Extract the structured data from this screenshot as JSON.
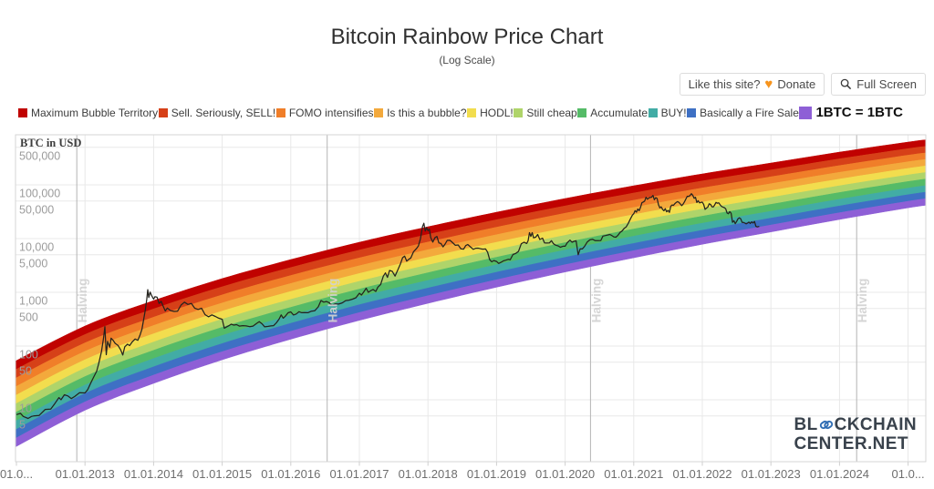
{
  "page": {
    "title": "Bitcoin Rainbow Price Chart",
    "subtitle": "(Log Scale)"
  },
  "toolbar": {
    "like_label": "Like this site?",
    "heart_icon": "♥",
    "donate_label": "Donate",
    "fullscreen_label": "Full Screen"
  },
  "watermark": {
    "line1_pre": "BL",
    "line1_post": "CKCHAIN",
    "line2": "CENTER.NET",
    "chain_color": "#2F6DB3"
  },
  "chart_data": {
    "type": "area",
    "title": "Bitcoin Rainbow Price Chart",
    "subtitle": "(Log Scale)",
    "legend_position": "top",
    "grid": true,
    "y_axis": {
      "title": "BTC in USD",
      "scale": "log",
      "ticks": [
        500000,
        100000,
        50000,
        10000,
        5000,
        1000,
        500,
        100,
        50,
        10,
        5
      ]
    },
    "x_axis": {
      "year_start": 2012,
      "tick_years": [
        2012,
        2013,
        2014,
        2015,
        2016,
        2017,
        2018,
        2019,
        2020,
        2021,
        2022,
        2023,
        2024,
        2025
      ],
      "labels": [
        "01.0...",
        "01.01.2013",
        "01.01.2014",
        "01.01.2015",
        "01.01.2016",
        "01.01.2017",
        "01.01.2018",
        "01.01.2019",
        "01.01.2020",
        "01.01.2021",
        "01.01.2022",
        "01.01.2023",
        "01.01.2024",
        "01.0..."
      ],
      "grid_years": [
        2013,
        2014,
        2015,
        2016,
        2017,
        2018,
        2019,
        2020,
        2021,
        2022,
        2023,
        2024,
        2025
      ]
    },
    "halvings": {
      "label": "Halving",
      "years": [
        2012.88,
        2016.53,
        2020.37,
        2024.25
      ]
    },
    "bands": [
      {
        "label": "Maximum Bubble Territory",
        "color": "#C00200"
      },
      {
        "label": "Sell. Seriously, SELL!",
        "color": "#D64018"
      },
      {
        "label": "FOMO intensifies",
        "color": "#F07E29"
      },
      {
        "label": "Is this a bubble?",
        "color": "#F3A93C"
      },
      {
        "label": "HODL!",
        "color": "#F2DD4E"
      },
      {
        "label": "Still cheap",
        "color": "#AFD46A"
      },
      {
        "label": "Accumulate",
        "color": "#55BB67"
      },
      {
        "label": "BUY!",
        "color": "#42ACA5"
      },
      {
        "label": "Basically a Fire Sale",
        "color": "#3E70C4"
      },
      {
        "label": "1BTC = 1BTC",
        "color": "#8E5FD6"
      }
    ],
    "band_log_width": {
      "start": 0.16,
      "end": 0.1215
    },
    "rainbow_top": [
      [
        2011.9,
        46
      ],
      [
        2013,
        236
      ],
      [
        2014,
        700
      ],
      [
        2015,
        1800
      ],
      [
        2016,
        4070
      ],
      [
        2017,
        8550
      ],
      [
        2018,
        16600
      ],
      [
        2019,
        31000
      ],
      [
        2020,
        55700
      ],
      [
        2021,
        96000
      ],
      [
        2022,
        160000
      ],
      [
        2023,
        255000
      ],
      [
        2024,
        407000
      ],
      [
        2025,
        627000
      ],
      [
        2025.35,
        710000
      ]
    ],
    "price_series": [
      [
        2012.0,
        5.3
      ],
      [
        2012.06,
        5.6
      ],
      [
        2012.1,
        4.9
      ],
      [
        2012.17,
        4.5
      ],
      [
        2012.22,
        4.9
      ],
      [
        2012.25,
        5.0
      ],
      [
        2012.33,
        5.1
      ],
      [
        2012.42,
        6.6
      ],
      [
        2012.5,
        6.7
      ],
      [
        2012.56,
        8.5
      ],
      [
        2012.62,
        11.0
      ],
      [
        2012.65,
        10.0
      ],
      [
        2012.7,
        12.4
      ],
      [
        2012.75,
        11.8
      ],
      [
        2012.8,
        10.5
      ],
      [
        2012.85,
        11.5
      ],
      [
        2012.92,
        13.5
      ],
      [
        2013.0,
        13.4
      ],
      [
        2013.04,
        15.5
      ],
      [
        2013.08,
        20
      ],
      [
        2013.13,
        27
      ],
      [
        2013.17,
        34
      ],
      [
        2013.2,
        47
      ],
      [
        2013.24,
        78
      ],
      [
        2013.27,
        140
      ],
      [
        2013.29,
        230
      ],
      [
        2013.31,
        69
      ],
      [
        2013.33,
        122
      ],
      [
        2013.36,
        95
      ],
      [
        2013.38,
        140
      ],
      [
        2013.41,
        128
      ],
      [
        2013.44,
        112
      ],
      [
        2013.48,
        103
      ],
      [
        2013.52,
        85
      ],
      [
        2013.55,
        68
      ],
      [
        2013.58,
        97
      ],
      [
        2013.62,
        108
      ],
      [
        2013.65,
        102
      ],
      [
        2013.69,
        120
      ],
      [
        2013.73,
        135
      ],
      [
        2013.77,
        128
      ],
      [
        2013.8,
        158
      ],
      [
        2013.83,
        205
      ],
      [
        2013.86,
        340
      ],
      [
        2013.88,
        480
      ],
      [
        2013.9,
        740
      ],
      [
        2013.915,
        1120
      ],
      [
        2013.93,
        800
      ],
      [
        2013.95,
        1010
      ],
      [
        2013.97,
        880
      ],
      [
        2014.0,
        745
      ],
      [
        2014.02,
        830
      ],
      [
        2014.05,
        810
      ],
      [
        2014.08,
        620
      ],
      [
        2014.11,
        680
      ],
      [
        2014.14,
        550
      ],
      [
        2014.17,
        450
      ],
      [
        2014.2,
        510
      ],
      [
        2014.25,
        455
      ],
      [
        2014.3,
        440
      ],
      [
        2014.35,
        445
      ],
      [
        2014.4,
        580
      ],
      [
        2014.45,
        655
      ],
      [
        2014.5,
        595
      ],
      [
        2014.55,
        620
      ],
      [
        2014.6,
        505
      ],
      [
        2014.65,
        480
      ],
      [
        2014.7,
        505
      ],
      [
        2014.75,
        385
      ],
      [
        2014.8,
        350
      ],
      [
        2014.85,
        380
      ],
      [
        2014.9,
        355
      ],
      [
        2014.95,
        330
      ],
      [
        2015.0,
        315
      ],
      [
        2015.03,
        215
      ],
      [
        2015.06,
        225
      ],
      [
        2015.1,
        240
      ],
      [
        2015.13,
        255
      ],
      [
        2015.17,
        245
      ],
      [
        2015.21,
        250
      ],
      [
        2015.25,
        235
      ],
      [
        2015.3,
        240
      ],
      [
        2015.35,
        237
      ],
      [
        2015.4,
        230
      ],
      [
        2015.45,
        235
      ],
      [
        2015.5,
        262
      ],
      [
        2015.54,
        285
      ],
      [
        2015.58,
        260
      ],
      [
        2015.62,
        228
      ],
      [
        2015.67,
        232
      ],
      [
        2015.71,
        237
      ],
      [
        2015.75,
        240
      ],
      [
        2015.79,
        270
      ],
      [
        2015.83,
        318
      ],
      [
        2015.86,
        380
      ],
      [
        2015.89,
        330
      ],
      [
        2015.92,
        358
      ],
      [
        2015.96,
        415
      ],
      [
        2016.0,
        432
      ],
      [
        2016.04,
        378
      ],
      [
        2016.08,
        395
      ],
      [
        2016.12,
        435
      ],
      [
        2016.16,
        418
      ],
      [
        2016.2,
        420
      ],
      [
        2016.25,
        417
      ],
      [
        2016.3,
        445
      ],
      [
        2016.35,
        455
      ],
      [
        2016.4,
        535
      ],
      [
        2016.44,
        700
      ],
      [
        2016.48,
        655
      ],
      [
        2016.52,
        675
      ],
      [
        2016.56,
        640
      ],
      [
        2016.6,
        575
      ],
      [
        2016.65,
        610
      ],
      [
        2016.7,
        605
      ],
      [
        2016.75,
        635
      ],
      [
        2016.8,
        700
      ],
      [
        2016.85,
        715
      ],
      [
        2016.9,
        745
      ],
      [
        2016.95,
        790
      ],
      [
        2017.0,
        963
      ],
      [
        2017.03,
        890
      ],
      [
        2017.06,
        1000
      ],
      [
        2017.1,
        1190
      ],
      [
        2017.13,
        1000
      ],
      [
        2017.17,
        1080
      ],
      [
        2017.2,
        1130
      ],
      [
        2017.24,
        1040
      ],
      [
        2017.27,
        1250
      ],
      [
        2017.31,
        1400
      ],
      [
        2017.35,
        2000
      ],
      [
        2017.38,
        2300
      ],
      [
        2017.41,
        1900
      ],
      [
        2017.44,
        2550
      ],
      [
        2017.48,
        2450
      ],
      [
        2017.52,
        2000
      ],
      [
        2017.56,
        2600
      ],
      [
        2017.6,
        3400
      ],
      [
        2017.63,
        4400
      ],
      [
        2017.66,
        4700
      ],
      [
        2017.69,
        3800
      ],
      [
        2017.72,
        4100
      ],
      [
        2017.75,
        4350
      ],
      [
        2017.79,
        5700
      ],
      [
        2017.83,
        6450
      ],
      [
        2017.86,
        7300
      ],
      [
        2017.89,
        9800
      ],
      [
        2017.92,
        16600
      ],
      [
        2017.94,
        19300
      ],
      [
        2017.96,
        13800
      ],
      [
        2017.98,
        16000
      ],
      [
        2018.0,
        14100
      ],
      [
        2018.02,
        15000
      ],
      [
        2018.04,
        10500
      ],
      [
        2018.07,
        8600
      ],
      [
        2018.1,
        10300
      ],
      [
        2018.13,
        11000
      ],
      [
        2018.16,
        8300
      ],
      [
        2018.19,
        8100
      ],
      [
        2018.22,
        7000
      ],
      [
        2018.25,
        7900
      ],
      [
        2018.28,
        9250
      ],
      [
        2018.32,
        9300
      ],
      [
        2018.36,
        8400
      ],
      [
        2018.4,
        7500
      ],
      [
        2018.44,
        7600
      ],
      [
        2018.48,
        6450
      ],
      [
        2018.52,
        6350
      ],
      [
        2018.55,
        7400
      ],
      [
        2018.58,
        7750
      ],
      [
        2018.62,
        7000
      ],
      [
        2018.66,
        6300
      ],
      [
        2018.7,
        6600
      ],
      [
        2018.73,
        6650
      ],
      [
        2018.77,
        6450
      ],
      [
        2018.8,
        6350
      ],
      [
        2018.84,
        6400
      ],
      [
        2018.87,
        5600
      ],
      [
        2018.9,
        4050
      ],
      [
        2018.93,
        3700
      ],
      [
        2018.96,
        3900
      ],
      [
        2019.0,
        3750
      ],
      [
        2019.03,
        3450
      ],
      [
        2019.07,
        3650
      ],
      [
        2019.1,
        3850
      ],
      [
        2019.13,
        3950
      ],
      [
        2019.17,
        4100
      ],
      [
        2019.2,
        4050
      ],
      [
        2019.24,
        5050
      ],
      [
        2019.28,
        5300
      ],
      [
        2019.32,
        5800
      ],
      [
        2019.36,
        8000
      ],
      [
        2019.4,
        8550
      ],
      [
        2019.44,
        8100
      ],
      [
        2019.46,
        9100
      ],
      [
        2019.48,
        12900
      ],
      [
        2019.5,
        11000
      ],
      [
        2019.52,
        12900
      ],
      [
        2019.54,
        10300
      ],
      [
        2019.57,
        10600
      ],
      [
        2019.6,
        11900
      ],
      [
        2019.63,
        9600
      ],
      [
        2019.67,
        10200
      ],
      [
        2019.7,
        8300
      ],
      [
        2019.73,
        8250
      ],
      [
        2019.77,
        8300
      ],
      [
        2019.8,
        9150
      ],
      [
        2019.83,
        8000
      ],
      [
        2019.86,
        7550
      ],
      [
        2019.9,
        7300
      ],
      [
        2019.93,
        6900
      ],
      [
        2019.97,
        7200
      ],
      [
        2020.0,
        7200
      ],
      [
        2020.03,
        8350
      ],
      [
        2020.07,
        9350
      ],
      [
        2020.1,
        8550
      ],
      [
        2020.13,
        8900
      ],
      [
        2020.16,
        9100
      ],
      [
        2020.19,
        5000
      ],
      [
        2020.22,
        6450
      ],
      [
        2020.25,
        6400
      ],
      [
        2020.28,
        7100
      ],
      [
        2020.32,
        8600
      ],
      [
        2020.36,
        9450
      ],
      [
        2020.4,
        9700
      ],
      [
        2020.44,
        9150
      ],
      [
        2020.48,
        9150
      ],
      [
        2020.52,
        9200
      ],
      [
        2020.55,
        11100
      ],
      [
        2020.58,
        11350
      ],
      [
        2020.62,
        11650
      ],
      [
        2020.65,
        11900
      ],
      [
        2020.68,
        11400
      ],
      [
        2020.71,
        10780
      ],
      [
        2020.74,
        10620
      ],
      [
        2020.77,
        11500
      ],
      [
        2020.8,
        13050
      ],
      [
        2020.83,
        13800
      ],
      [
        2020.86,
        15500
      ],
      [
        2020.89,
        16500
      ],
      [
        2020.92,
        19200
      ],
      [
        2020.95,
        23000
      ],
      [
        2020.98,
        27300
      ],
      [
        2021.0,
        29000
      ],
      [
        2021.02,
        33100
      ],
      [
        2021.04,
        31000
      ],
      [
        2021.06,
        35500
      ],
      [
        2021.08,
        33100
      ],
      [
        2021.1,
        38500
      ],
      [
        2021.12,
        46500
      ],
      [
        2021.14,
        48000
      ],
      [
        2021.16,
        50000
      ],
      [
        2021.18,
        58800
      ],
      [
        2021.2,
        54000
      ],
      [
        2021.23,
        58000
      ],
      [
        2021.26,
        58800
      ],
      [
        2021.28,
        63500
      ],
      [
        2021.3,
        53000
      ],
      [
        2021.32,
        57750
      ],
      [
        2021.34,
        56000
      ],
      [
        2021.36,
        43000
      ],
      [
        2021.38,
        37300
      ],
      [
        2021.4,
        39000
      ],
      [
        2021.42,
        35000
      ],
      [
        2021.44,
        33000
      ],
      [
        2021.46,
        35900
      ],
      [
        2021.48,
        31500
      ],
      [
        2021.5,
        33500
      ],
      [
        2021.52,
        30800
      ],
      [
        2021.54,
        39900
      ],
      [
        2021.56,
        42200
      ],
      [
        2021.58,
        41500
      ],
      [
        2021.6,
        44700
      ],
      [
        2021.62,
        47100
      ],
      [
        2021.64,
        48800
      ],
      [
        2021.66,
        47100
      ],
      [
        2021.68,
        44000
      ],
      [
        2021.7,
        41000
      ],
      [
        2021.72,
        43800
      ],
      [
        2021.74,
        48200
      ],
      [
        2021.76,
        54700
      ],
      [
        2021.78,
        61300
      ],
      [
        2021.8,
        60900
      ],
      [
        2021.82,
        63300
      ],
      [
        2021.84,
        68500
      ],
      [
        2021.86,
        64000
      ],
      [
        2021.88,
        56300
      ],
      [
        2021.9,
        58700
      ],
      [
        2021.92,
        46900
      ],
      [
        2021.94,
        50800
      ],
      [
        2021.96,
        46200
      ],
      [
        2021.98,
        47100
      ],
      [
        2022.0,
        47700
      ],
      [
        2022.02,
        43100
      ],
      [
        2022.04,
        35000
      ],
      [
        2022.06,
        36900
      ],
      [
        2022.08,
        38500
      ],
      [
        2022.1,
        44400
      ],
      [
        2022.12,
        43200
      ],
      [
        2022.14,
        39200
      ],
      [
        2022.16,
        38800
      ],
      [
        2022.18,
        42200
      ],
      [
        2022.2,
        47100
      ],
      [
        2022.22,
        45500
      ],
      [
        2022.24,
        46300
      ],
      [
        2022.26,
        42300
      ],
      [
        2022.28,
        39700
      ],
      [
        2022.3,
        38600
      ],
      [
        2022.32,
        37650
      ],
      [
        2022.34,
        36000
      ],
      [
        2022.36,
        30100
      ],
      [
        2022.38,
        29000
      ],
      [
        2022.4,
        31800
      ],
      [
        2022.42,
        29500
      ],
      [
        2022.44,
        20100
      ],
      [
        2022.46,
        21500
      ],
      [
        2022.48,
        19000
      ],
      [
        2022.5,
        20800
      ],
      [
        2022.52,
        23300
      ],
      [
        2022.54,
        24300
      ],
      [
        2022.56,
        23300
      ],
      [
        2022.58,
        20050
      ],
      [
        2022.6,
        20000
      ],
      [
        2022.62,
        19400
      ],
      [
        2022.64,
        18800
      ],
      [
        2022.66,
        19400
      ],
      [
        2022.68,
        20300
      ],
      [
        2022.7,
        19150
      ],
      [
        2022.72,
        20500
      ],
      [
        2022.74,
        19500
      ],
      [
        2022.76,
        20800
      ],
      [
        2022.78,
        17000
      ],
      [
        2022.8,
        16500
      ],
      [
        2022.83,
        16900
      ]
    ]
  }
}
